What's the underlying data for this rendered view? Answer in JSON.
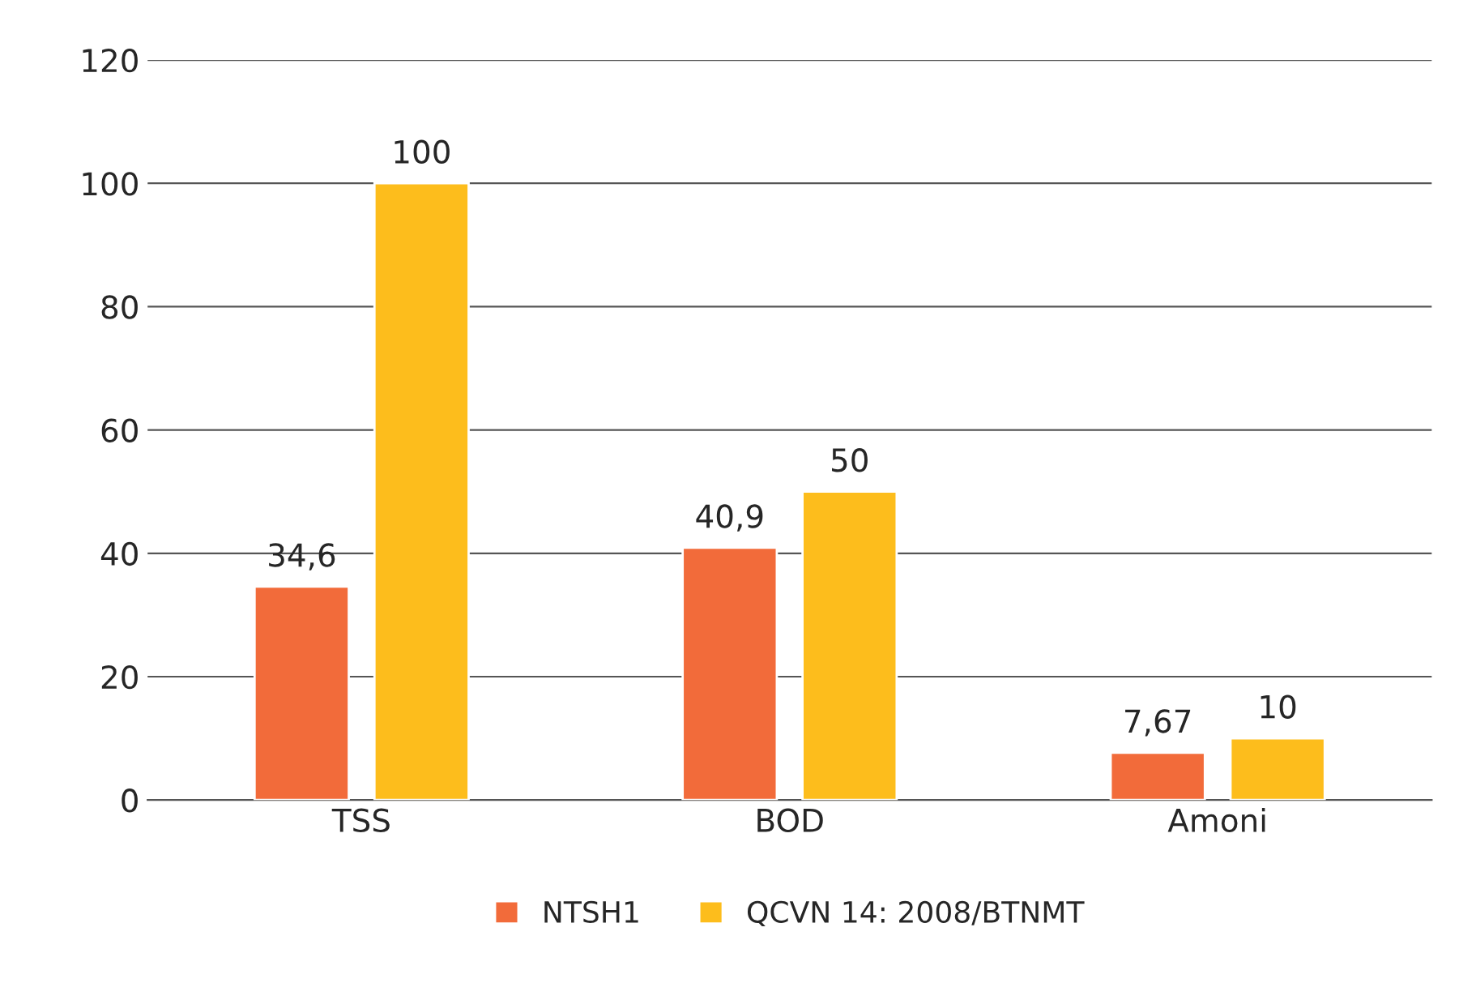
{
  "chart_data": {
    "type": "bar",
    "categories": [
      "TSS",
      "BOD",
      "Amoni"
    ],
    "series": [
      {
        "name": "NTSH1",
        "color": "#f26b3a",
        "values": [
          34.6,
          40.9,
          7.67
        ],
        "value_labels": [
          "34,6",
          "40,9",
          "7,67"
        ]
      },
      {
        "name": "QCVN 14: 2008/BTNMT",
        "color": "#fdbd1c",
        "values": [
          100,
          50,
          10
        ],
        "value_labels": [
          "100",
          "50",
          "10"
        ]
      }
    ],
    "ylim": [
      0,
      120
    ],
    "yticks": [
      0,
      20,
      40,
      60,
      80,
      100,
      120
    ],
    "grid": "y",
    "legend": "bottom"
  }
}
